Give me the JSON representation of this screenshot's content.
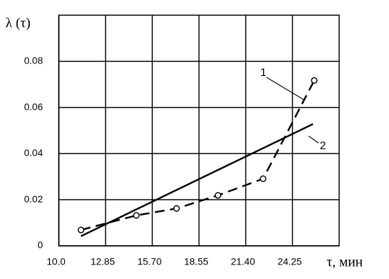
{
  "chart_data": {
    "type": "line",
    "y_label": "λ (τ)",
    "x_label": "τ, мин",
    "xlim": [
      10.0,
      27.1
    ],
    "xticks": [
      {
        "value": 10.0,
        "label": "10.0"
      },
      12.85,
      {
        "value": 15.7,
        "label": "15.70"
      },
      18.55,
      {
        "value": 21.4,
        "label": "21.40"
      },
      24.25
    ],
    "ylim": [
      0,
      0.1
    ],
    "yticks": [
      0,
      0.02,
      0.04,
      0.06,
      0.08
    ],
    "grid": true,
    "series": [
      {
        "name": "1",
        "color": "#000000",
        "dashed": true,
        "markers": true,
        "x": [
          11.35,
          14.73,
          17.18,
          19.71,
          22.46,
          25.58
        ],
        "values": [
          0.0069,
          0.0132,
          0.0162,
          0.0219,
          0.0291,
          0.0717
        ]
      },
      {
        "name": "2",
        "color": "#000000",
        "dashed": false,
        "markers": false,
        "x": [
          11.35,
          25.5
        ],
        "values": [
          0.0042,
          0.0528
        ]
      }
    ]
  }
}
